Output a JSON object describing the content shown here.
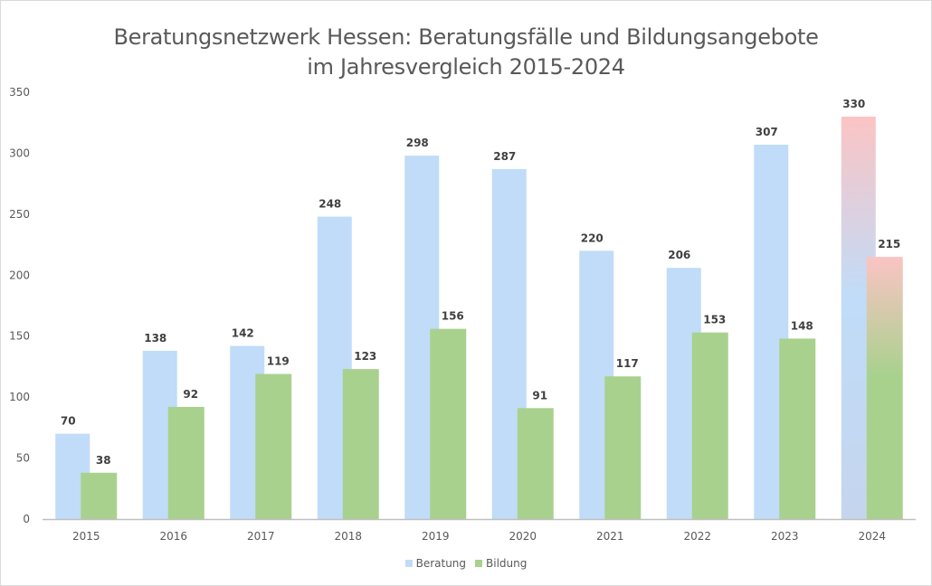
{
  "chart_data": {
    "type": "bar",
    "title": "Beratungsnetzwerk Hessen: Beratungsfälle und Bildungsangebote im Jahresvergleich 2015-2024",
    "title_lines": [
      "Beratungsnetzwerk Hessen: Beratungsfälle und Bildungsangebote",
      "im Jahresvergleich 2015-2024"
    ],
    "xlabel": "",
    "ylabel": "",
    "ylim": [
      0,
      350
    ],
    "yticks": [
      0,
      50,
      100,
      150,
      200,
      250,
      300,
      350
    ],
    "grid": false,
    "legend_position": "bottom-center",
    "categories": [
      "2015",
      "2016",
      "2017",
      "2018",
      "2019",
      "2020",
      "2021",
      "2022",
      "2023",
      "2024"
    ],
    "series": [
      {
        "name": "Beratung",
        "color": "#c0dcf8",
        "values": [
          70,
          138,
          142,
          248,
          298,
          287,
          220,
          206,
          307,
          330
        ],
        "highlight_last": {
          "top_color": "#fbc4c4",
          "mid_color": "#c0dcf8",
          "bottom_color": "#c5d5ee"
        }
      },
      {
        "name": "Bildung",
        "color": "#a9d18e",
        "values": [
          38,
          92,
          119,
          123,
          156,
          91,
          117,
          153,
          148,
          215
        ],
        "highlight_last": {
          "top_color": "#fbc4c4",
          "bottom_color": "#a9d18e"
        }
      }
    ]
  }
}
